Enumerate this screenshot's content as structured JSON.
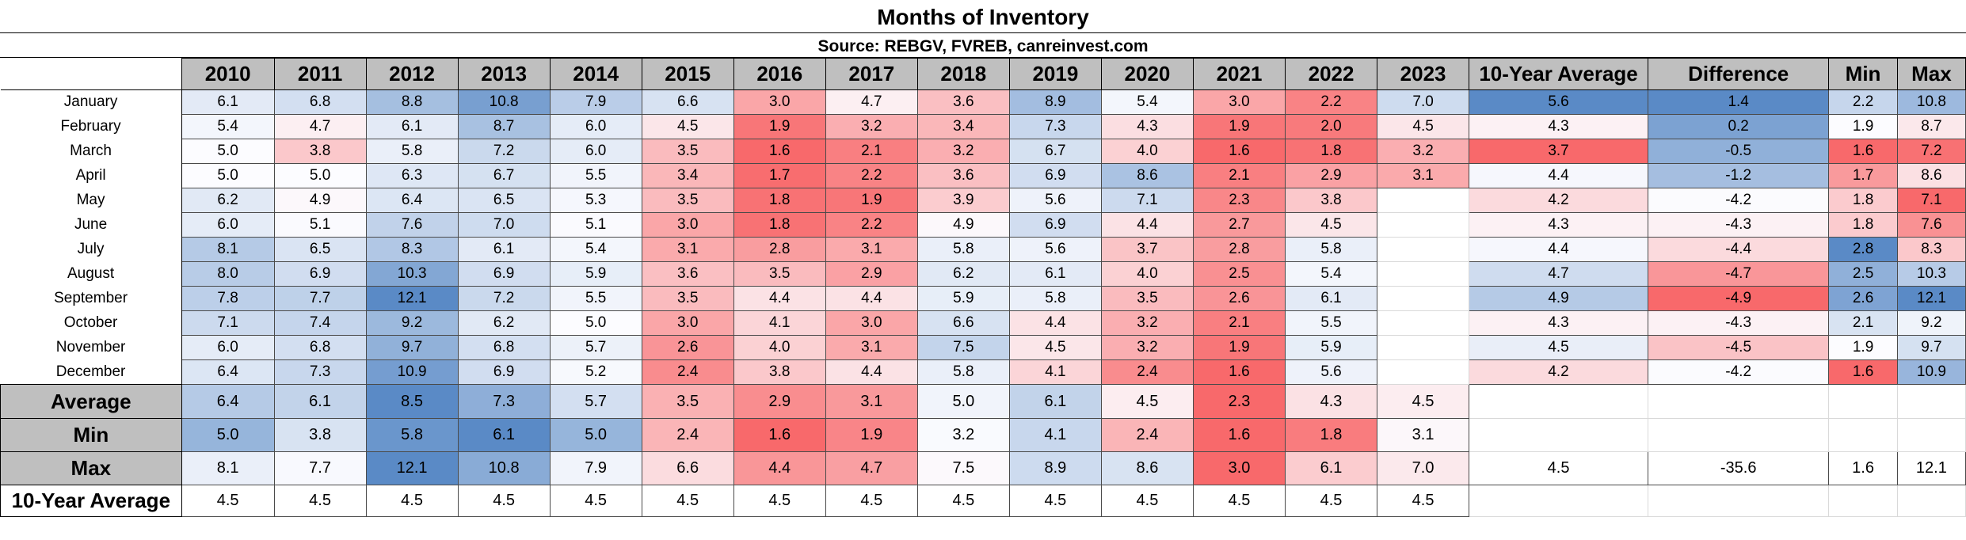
{
  "chart_data": {
    "type": "table",
    "title": "Months of Inventory",
    "subtitle": "Source: REBGV, FVREB, canreinvest.com",
    "columns": [
      "2010",
      "2011",
      "2012",
      "2013",
      "2014",
      "2015",
      "2016",
      "2017",
      "2018",
      "2019",
      "2020",
      "2021",
      "2022",
      "2023",
      "10-Year Average",
      "Difference",
      "Min",
      "Max"
    ],
    "rows": [
      {
        "label": "January",
        "values": [
          "6.1",
          "6.8",
          "8.8",
          "10.8",
          "7.9",
          "6.6",
          "3.0",
          "4.7",
          "3.6",
          "8.9",
          "5.4",
          "3.0",
          "2.2",
          "7.0",
          "5.6",
          "1.4",
          "2.2",
          "10.8"
        ]
      },
      {
        "label": "February",
        "values": [
          "5.4",
          "4.7",
          "6.1",
          "8.7",
          "6.0",
          "4.5",
          "1.9",
          "3.2",
          "3.4",
          "7.3",
          "4.3",
          "1.9",
          "2.0",
          "4.5",
          "4.3",
          "0.2",
          "1.9",
          "8.7"
        ]
      },
      {
        "label": "March",
        "values": [
          "5.0",
          "3.8",
          "5.8",
          "7.2",
          "6.0",
          "3.5",
          "1.6",
          "2.1",
          "3.2",
          "6.7",
          "4.0",
          "1.6",
          "1.8",
          "3.2",
          "3.7",
          "-0.5",
          "1.6",
          "7.2"
        ]
      },
      {
        "label": "April",
        "values": [
          "5.0",
          "5.0",
          "6.3",
          "6.7",
          "5.5",
          "3.4",
          "1.7",
          "2.2",
          "3.6",
          "6.9",
          "8.6",
          "2.1",
          "2.9",
          "3.1",
          "4.4",
          "-1.2",
          "1.7",
          "8.6"
        ]
      },
      {
        "label": "May",
        "values": [
          "6.2",
          "4.9",
          "6.4",
          "6.5",
          "5.3",
          "3.5",
          "1.8",
          "1.9",
          "3.9",
          "5.6",
          "7.1",
          "2.3",
          "3.8",
          "",
          "4.2",
          "-4.2",
          "1.8",
          "7.1"
        ]
      },
      {
        "label": "June",
        "values": [
          "6.0",
          "5.1",
          "7.6",
          "7.0",
          "5.1",
          "3.0",
          "1.8",
          "2.2",
          "4.9",
          "6.9",
          "4.4",
          "2.7",
          "4.5",
          "",
          "4.3",
          "-4.3",
          "1.8",
          "7.6"
        ]
      },
      {
        "label": "July",
        "values": [
          "8.1",
          "6.5",
          "8.3",
          "6.1",
          "5.4",
          "3.1",
          "2.8",
          "3.1",
          "5.8",
          "5.6",
          "3.7",
          "2.8",
          "5.8",
          "",
          "4.4",
          "-4.4",
          "2.8",
          "8.3"
        ]
      },
      {
        "label": "August",
        "values": [
          "8.0",
          "6.9",
          "10.3",
          "6.9",
          "5.9",
          "3.6",
          "3.5",
          "2.9",
          "6.2",
          "6.1",
          "4.0",
          "2.5",
          "5.4",
          "",
          "4.7",
          "-4.7",
          "2.5",
          "10.3"
        ]
      },
      {
        "label": "September",
        "values": [
          "7.8",
          "7.7",
          "12.1",
          "7.2",
          "5.5",
          "3.5",
          "4.4",
          "4.4",
          "5.9",
          "5.8",
          "3.5",
          "2.6",
          "6.1",
          "",
          "4.9",
          "-4.9",
          "2.6",
          "12.1"
        ]
      },
      {
        "label": "October",
        "values": [
          "7.1",
          "7.4",
          "9.2",
          "6.2",
          "5.0",
          "3.0",
          "4.1",
          "3.0",
          "6.6",
          "4.4",
          "3.2",
          "2.1",
          "5.5",
          "",
          "4.3",
          "-4.3",
          "2.1",
          "9.2"
        ]
      },
      {
        "label": "November",
        "values": [
          "6.0",
          "6.8",
          "9.7",
          "6.8",
          "5.7",
          "2.6",
          "4.0",
          "3.1",
          "7.5",
          "4.5",
          "3.2",
          "1.9",
          "5.9",
          "",
          "4.5",
          "-4.5",
          "1.9",
          "9.7"
        ]
      },
      {
        "label": "December",
        "values": [
          "6.4",
          "7.3",
          "10.9",
          "6.9",
          "5.2",
          "2.4",
          "3.8",
          "4.4",
          "5.8",
          "4.1",
          "2.4",
          "1.6",
          "5.6",
          "",
          "4.2",
          "-4.2",
          "1.6",
          "10.9"
        ]
      }
    ],
    "summary_rows": [
      {
        "label": "Average",
        "values": [
          "6.4",
          "6.1",
          "8.5",
          "7.3",
          "5.7",
          "3.5",
          "2.9",
          "3.1",
          "5.0",
          "6.1",
          "4.5",
          "2.3",
          "4.3",
          "4.5",
          "",
          "",
          "",
          ""
        ]
      },
      {
        "label": "Min",
        "values": [
          "5.0",
          "3.8",
          "5.8",
          "6.1",
          "5.0",
          "2.4",
          "1.6",
          "1.9",
          "3.2",
          "4.1",
          "2.4",
          "1.6",
          "1.8",
          "3.1",
          "",
          "",
          "",
          ""
        ]
      },
      {
        "label": "Max",
        "values": [
          "8.1",
          "7.7",
          "12.1",
          "10.8",
          "7.9",
          "6.6",
          "4.4",
          "4.7",
          "7.5",
          "8.9",
          "8.6",
          "3.0",
          "6.1",
          "7.0",
          "4.5",
          "-35.6",
          "1.6",
          "12.1"
        ]
      },
      {
        "label": "10-Year Average",
        "values": [
          "4.5",
          "4.5",
          "4.5",
          "4.5",
          "4.5",
          "4.5",
          "4.5",
          "4.5",
          "4.5",
          "4.5",
          "4.5",
          "4.5",
          "4.5",
          "4.5",
          "",
          "",
          "",
          ""
        ]
      }
    ],
    "color_scale": {
      "low": "#f8696b",
      "mid": "#fcfcff",
      "high": "#5a8ac6"
    }
  }
}
